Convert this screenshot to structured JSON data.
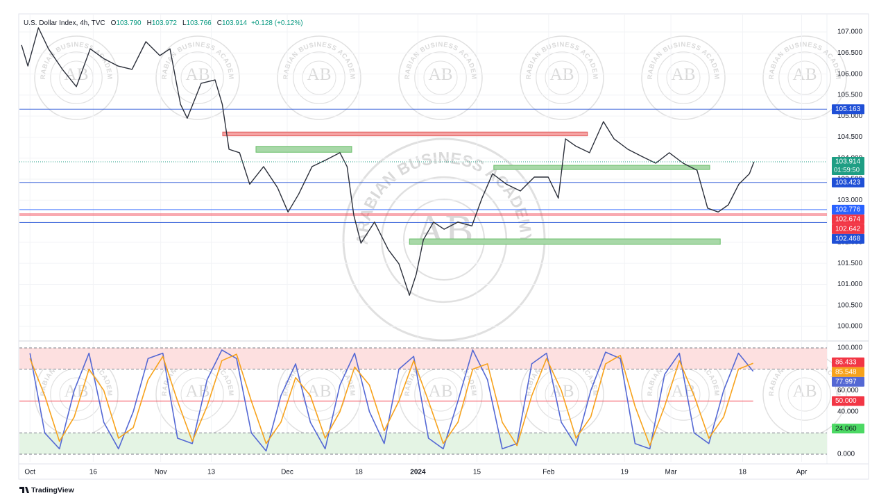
{
  "header": {
    "symbol": "U.S. Dollar Index, 4h, TVC",
    "ohlc": [
      [
        "O",
        "103.790"
      ],
      [
        "H",
        "103.972"
      ],
      [
        "L",
        "103.766"
      ],
      [
        "C",
        "103.914"
      ]
    ],
    "change": "+0.128 (+0.12%)"
  },
  "watermark": {
    "initials": "AB",
    "name": "ARABIAN BUSINESS ACADEMY"
  },
  "brand": "TradingView",
  "chart_data": [
    {
      "type": "line",
      "color": "#2a2e39",
      "x": [
        -2,
        -0.5,
        2,
        4.4,
        7.7,
        11,
        14.3,
        17.6,
        20.9,
        24.2,
        27.5,
        30.8,
        33.2,
        35.7,
        37.3,
        40.6,
        43.9,
        45.6,
        47.2,
        49.7,
        52.1,
        55.4,
        58.7,
        61.2,
        63.7,
        66.9,
        70.2,
        73.5,
        75.2,
        76.8,
        78.5,
        81.7,
        85,
        87.5,
        90,
        91.6,
        93.3,
        95.7,
        98.2,
        101.5,
        104.8,
        107.2,
        109.7,
        113,
        116.3,
        119.6,
        122.9,
        125.3,
        127,
        129.4,
        132.7,
        136,
        138.5,
        141.8,
        145.1,
        148.4,
        151.6,
        154.9,
        158.2,
        160.7,
        163.2,
        165.6,
        168.1,
        170.6,
        171.7
      ],
      "values": [
        106.69,
        106.19,
        107.1,
        106.6,
        106.11,
        105.7,
        106.6,
        106.36,
        106.19,
        106.11,
        106.77,
        106.44,
        106.6,
        105.28,
        104.95,
        105.78,
        105.86,
        105.28,
        104.21,
        104.13,
        103.38,
        103.8,
        103.3,
        102.72,
        103.14,
        103.8,
        103.96,
        104.13,
        103.8,
        102.64,
        101.98,
        102.48,
        101.82,
        101.49,
        100.74,
        101.24,
        102.06,
        102.48,
        102.31,
        102.48,
        102.39,
        103.05,
        103.63,
        103.38,
        103.22,
        103.55,
        103.55,
        103.05,
        104.46,
        104.29,
        104.13,
        104.87,
        104.46,
        104.21,
        104.04,
        103.88,
        104.13,
        103.88,
        103.71,
        102.81,
        102.72,
        102.89,
        103.38,
        103.63,
        103.914
      ],
      "xlim": [
        -2.5,
        189
      ],
      "xticks": [
        {
          "value": 0,
          "label": "Oct"
        },
        {
          "value": 15,
          "label": "16"
        },
        {
          "value": 31,
          "label": "Nov"
        },
        {
          "value": 43,
          "label": "13"
        },
        {
          "value": 61,
          "label": "Dec"
        },
        {
          "value": 78,
          "label": "18"
        },
        {
          "value": 92,
          "label": "2024"
        },
        {
          "value": 106,
          "label": "15"
        },
        {
          "value": 123,
          "label": "Feb"
        },
        {
          "value": 141,
          "label": "19"
        },
        {
          "value": 152,
          "label": "Mar"
        },
        {
          "value": 169,
          "label": "18"
        },
        {
          "value": 183,
          "label": "Apr"
        }
      ],
      "ylim": [
        99.67,
        107.43
      ],
      "yticks": [
        {
          "value": 100,
          "label": "100.000"
        },
        {
          "value": 100.5,
          "label": "100.500"
        },
        {
          "value": 101,
          "label": "101.000"
        },
        {
          "value": 101.5,
          "label": "101.500"
        },
        {
          "value": 102,
          "label": "102.000"
        },
        {
          "value": 102.5,
          "label": "102.500"
        },
        {
          "value": 103,
          "label": "103.000"
        },
        {
          "value": 103.5,
          "label": "103.500"
        },
        {
          "value": 104,
          "label": "104.000"
        },
        {
          "value": 104.5,
          "label": "104.500"
        },
        {
          "value": 105,
          "label": "105.000"
        },
        {
          "value": 105.5,
          "label": "105.500"
        },
        {
          "value": 106,
          "label": "106.000"
        },
        {
          "value": 106.5,
          "label": "106.500"
        },
        {
          "value": 107,
          "label": "107.000"
        }
      ],
      "grid": true,
      "levels": [
        {
          "value": 105.163,
          "color": "#1f4fd6"
        },
        {
          "value": 103.423,
          "color": "#1f4fd6"
        },
        {
          "value": 102.776,
          "color": "#2962ff"
        },
        {
          "value": 102.674,
          "color": "#f23645"
        },
        {
          "value": 102.642,
          "color": "#f23645"
        },
        {
          "value": 102.468,
          "color": "#1f4fd6"
        }
      ],
      "zones": [
        {
          "x": [
            45.7,
            132.2
          ],
          "y": [
            104.53,
            104.62
          ],
          "color": "#f5a3a3",
          "stroke": "#e05a5a"
        },
        {
          "x": [
            53.6,
            76.3
          ],
          "y": [
            104.14,
            104.28
          ],
          "color": "#a8d8a8",
          "stroke": "#6bbf6b"
        },
        {
          "x": [
            110,
            161.2
          ],
          "y": [
            103.73,
            103.83
          ],
          "color": "#a8d8a8",
          "stroke": "#6bbf6b"
        },
        {
          "x": [
            90,
            163.7
          ],
          "y": [
            101.95,
            102.08
          ],
          "color": "#a8d8a8",
          "stroke": "#6bbf6b"
        }
      ],
      "last": {
        "value": 103.914,
        "countdown": "01:59:50",
        "color": "#1e9e84"
      }
    },
    {
      "type": "line",
      "x": [
        0,
        3.5,
        7,
        10.5,
        14,
        17.5,
        21,
        24.5,
        28,
        31.5,
        35,
        38.5,
        42,
        45.5,
        49,
        52.5,
        56,
        59.5,
        63,
        66.5,
        70,
        73.5,
        77,
        80.5,
        84,
        87.5,
        91,
        94.5,
        98,
        101.5,
        105,
        108.5,
        112,
        115.5,
        119,
        122.5,
        126,
        129.5,
        133,
        136.5,
        140,
        143.5,
        147,
        150.5,
        154,
        157.5,
        161,
        164.5,
        168,
        171.5
      ],
      "series": [
        {
          "color": "#5468d4",
          "values": [
            95,
            20,
            5,
            60,
            95,
            30,
            5,
            40,
            90,
            95,
            15,
            10,
            70,
            98,
            90,
            20,
            3,
            55,
            85,
            30,
            5,
            65,
            95,
            40,
            10,
            80,
            92,
            15,
            5,
            50,
            98,
            70,
            5,
            10,
            85,
            95,
            30,
            8,
            60,
            96,
            90,
            10,
            5,
            75,
            95,
            20,
            10,
            60,
            95,
            77.997
          ]
        },
        {
          "color": "#f7a21b",
          "values": [
            90,
            55,
            12,
            35,
            80,
            60,
            15,
            25,
            70,
            92,
            50,
            12,
            45,
            88,
            94,
            50,
            10,
            30,
            72,
            55,
            15,
            40,
            82,
            65,
            22,
            50,
            88,
            50,
            10,
            30,
            80,
            85,
            30,
            8,
            55,
            90,
            60,
            15,
            35,
            85,
            93,
            45,
            8,
            45,
            88,
            55,
            15,
            35,
            80,
            85.548
          ]
        }
      ],
      "xlim": [
        -2.5,
        189
      ],
      "ylim": [
        -7.2,
        105.2
      ],
      "yticks": [
        {
          "value": 100,
          "label": "100.000"
        },
        {
          "value": 60,
          "label": "60.000"
        },
        {
          "value": 40,
          "label": "40.000"
        },
        {
          "value": 0,
          "label": "0.000"
        }
      ],
      "bands": [
        {
          "from": 80,
          "to": 100,
          "color": "#fde0e0"
        },
        {
          "from": 0,
          "to": 20,
          "color": "#e4f4e4"
        }
      ],
      "levels": [
        {
          "value": 86.433,
          "label": "86.433",
          "color": "#f23645",
          "text_color": "#ffffff",
          "line": false
        },
        {
          "value": 50,
          "label": "50.000",
          "color": "#f23645",
          "text_color": "#ffffff",
          "line": true
        },
        {
          "value": 24.06,
          "label": "24.060",
          "color": "#4cd964",
          "text_color": "#131722",
          "line": false
        }
      ]
    }
  ]
}
